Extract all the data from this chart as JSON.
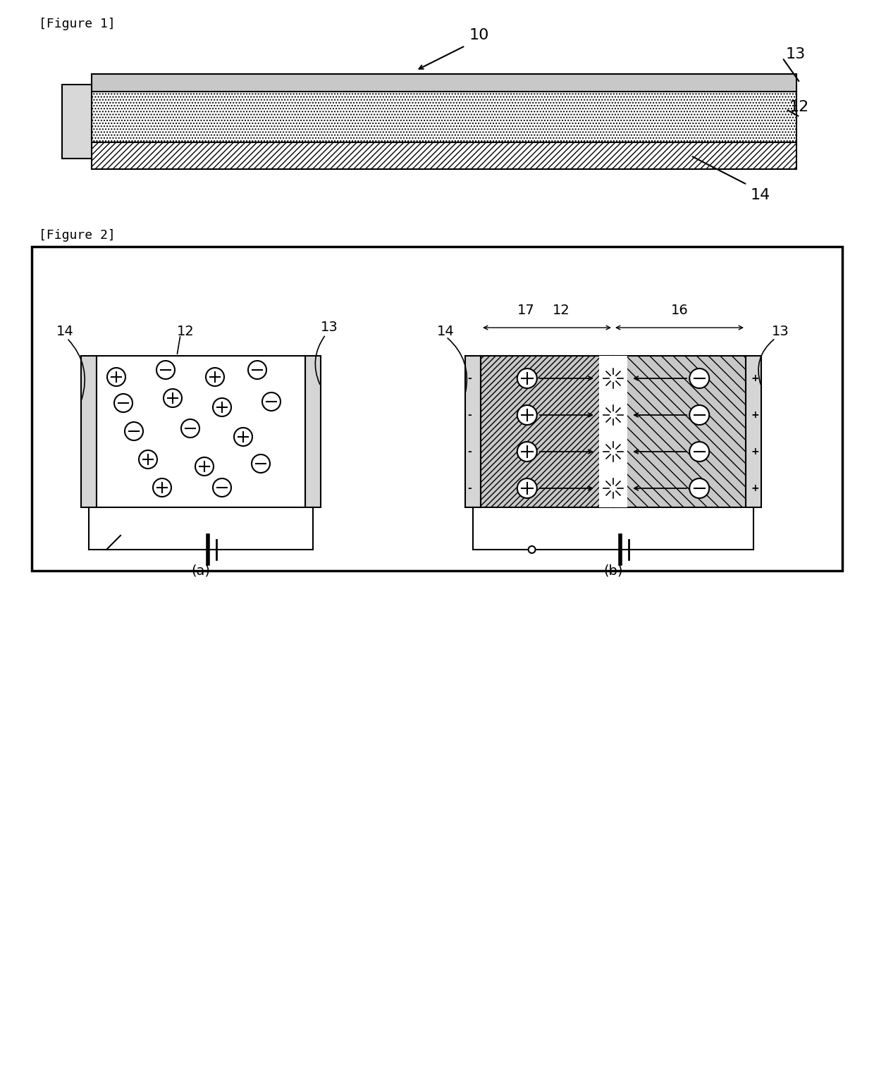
{
  "fig1_label": "[Figure 1]",
  "fig2_label": "[Figure 2]",
  "label_10": "10",
  "label_12": "12",
  "label_13": "13",
  "label_14": "14",
  "label_16": "16",
  "label_17": "17",
  "bg_color": "#ffffff",
  "line_color": "#000000"
}
